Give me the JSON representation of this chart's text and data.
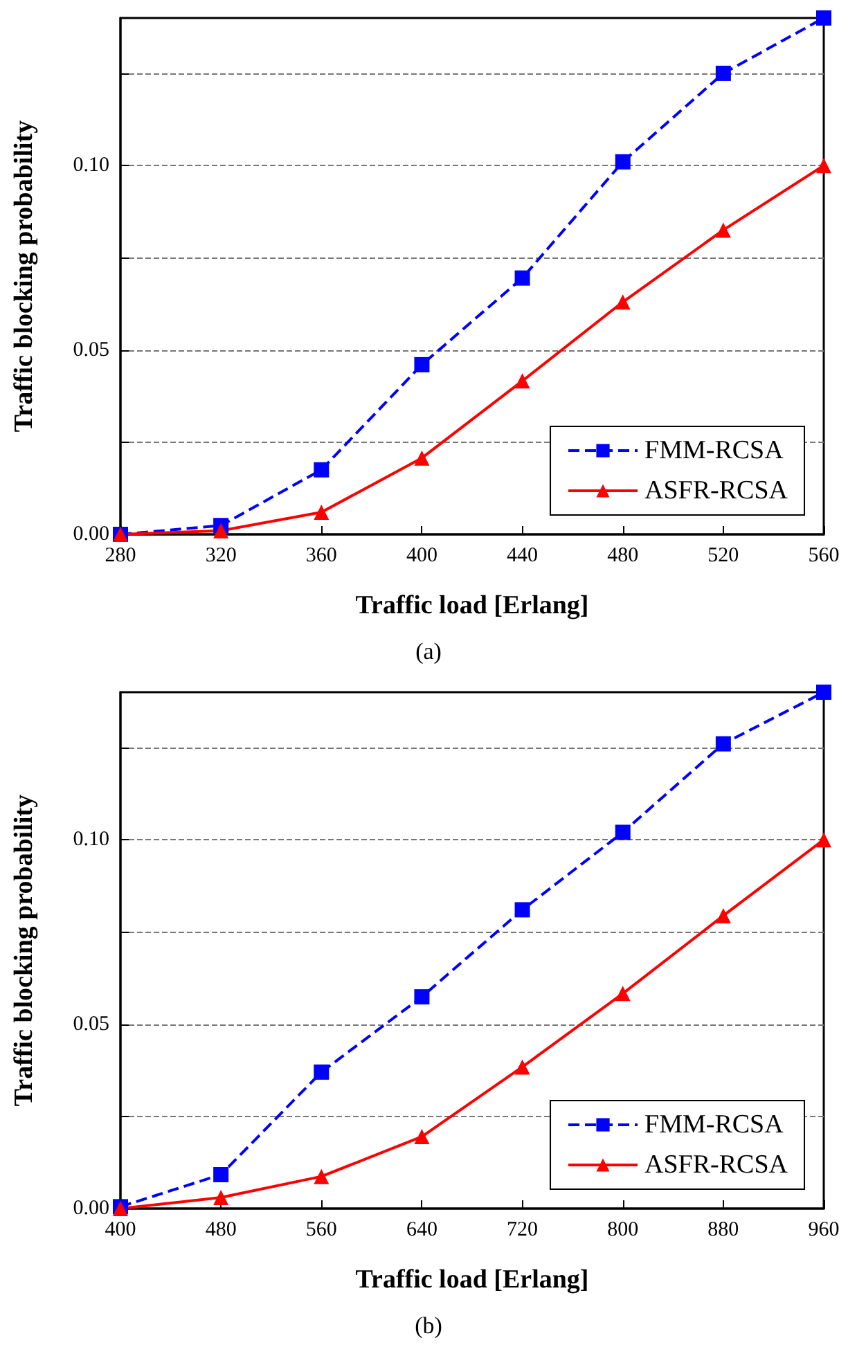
{
  "chart_data": [
    {
      "type": "line",
      "xlabel": "Traffic load [Erlang]",
      "ylabel": "Traffic blocking probability",
      "annotations": [
        "(a)"
      ],
      "x": [
        280,
        320,
        360,
        400,
        440,
        480,
        520,
        560
      ],
      "series": [
        {
          "name": "FMM-RCSA",
          "color": "#0000ff",
          "marker": "square",
          "line_style": "dashed",
          "values": [
            0.0,
            0.0024,
            0.0175,
            0.046,
            0.0695,
            0.101,
            0.125,
            0.14
          ]
        },
        {
          "name": "ASFR-RCSA",
          "color": "#ff0000",
          "marker": "triangle",
          "line_style": "solid",
          "values": [
            0.0,
            0.001,
            0.006,
            0.0207,
            0.0416,
            0.063,
            0.0825,
            0.1
          ]
        }
      ],
      "xlim": [
        280,
        560
      ],
      "xticks": [
        280,
        320,
        360,
        400,
        440,
        480,
        520,
        560
      ],
      "ylim": [
        0,
        0.14
      ],
      "yticks": [
        {
          "value": 0,
          "label": "0.00"
        },
        {
          "value": 0.025,
          "label": null
        },
        {
          "value": 0.05,
          "label": "0.05"
        },
        {
          "value": 0.075,
          "label": null
        },
        {
          "value": 0.1,
          "label": "0.10"
        },
        {
          "value": 0.125,
          "label": null
        }
      ],
      "grid": "y",
      "legend": "bottom right"
    },
    {
      "type": "line",
      "xlabel": "Traffic load [Erlang]",
      "ylabel": "Traffic blocking probability",
      "annotations": [
        "(b)"
      ],
      "x": [
        400,
        480,
        560,
        640,
        720,
        800,
        880,
        960
      ],
      "series": [
        {
          "name": "FMM-RCSA",
          "color": "#0000ff",
          "marker": "square",
          "line_style": "dashed",
          "values": [
            0.0005,
            0.0092,
            0.037,
            0.0574,
            0.081,
            0.102,
            0.126,
            0.14
          ]
        },
        {
          "name": "ASFR-RCSA",
          "color": "#ff0000",
          "marker": "triangle",
          "line_style": "solid",
          "values": [
            0.0,
            0.003,
            0.0087,
            0.0195,
            0.0384,
            0.0583,
            0.0794,
            0.1
          ]
        }
      ],
      "xlim": [
        400,
        960
      ],
      "xticks": [
        400,
        480,
        560,
        640,
        720,
        800,
        880,
        960
      ],
      "ylim": [
        0,
        0.14
      ],
      "yticks": [
        {
          "value": 0,
          "label": "0.00"
        },
        {
          "value": 0.025,
          "label": null
        },
        {
          "value": 0.05,
          "label": "0.05"
        },
        {
          "value": 0.075,
          "label": null
        },
        {
          "value": 0.1,
          "label": "0.10"
        },
        {
          "value": 0.125,
          "label": null
        }
      ],
      "grid": "y",
      "legend": "bottom right"
    }
  ]
}
